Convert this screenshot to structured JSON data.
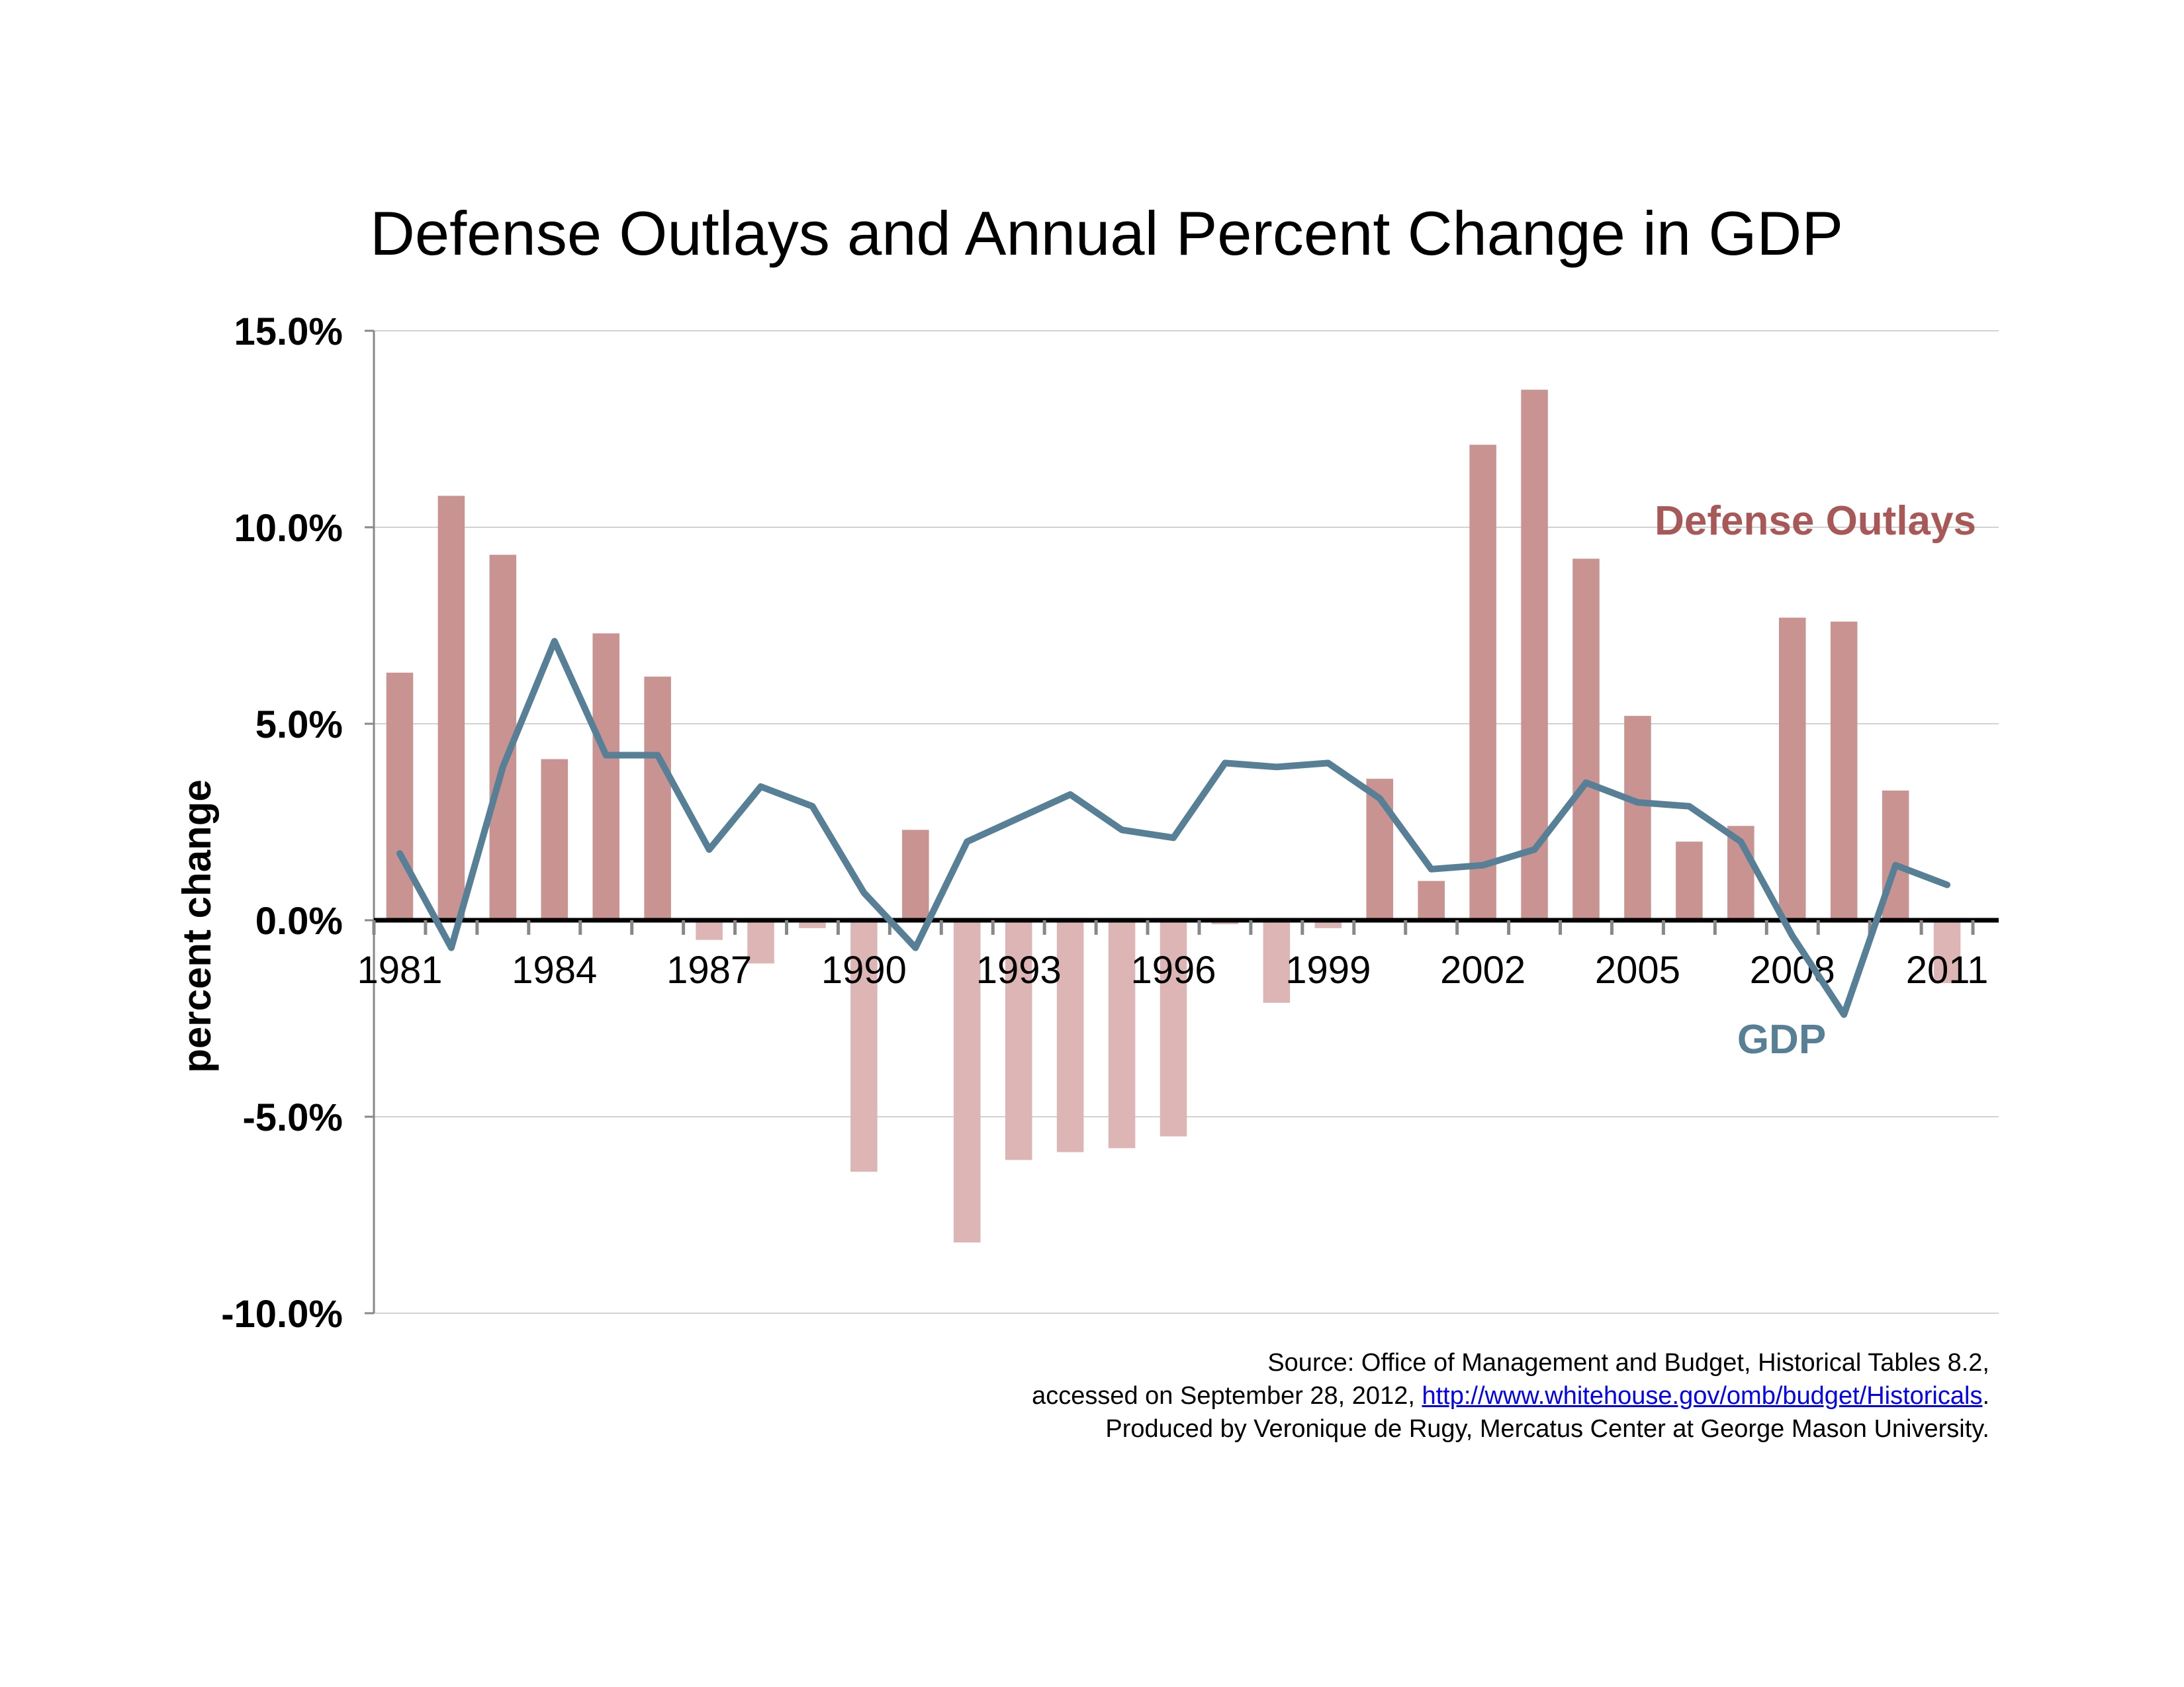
{
  "chart_data": {
    "type": "bar",
    "title": "Defense Outlays and Annual Percent Change in GDP",
    "xlabel": "",
    "ylabel": "percent change",
    "ylim": [
      -10,
      15
    ],
    "yticks": [
      15,
      10,
      5,
      0,
      -5,
      -10
    ],
    "ytick_labels": [
      "15.0%",
      "10.0%",
      "5.0%",
      "0.0%",
      "-5.0%",
      "-10.0%"
    ],
    "grid": true,
    "legend": "inline",
    "categories": [
      1981,
      1982,
      1983,
      1984,
      1985,
      1986,
      1987,
      1988,
      1989,
      1990,
      1991,
      1992,
      1993,
      1994,
      1995,
      1996,
      1997,
      1998,
      1999,
      2000,
      2001,
      2002,
      2003,
      2004,
      2005,
      2006,
      2007,
      2008,
      2009,
      2010,
      2011
    ],
    "xtick_labels": [
      "1981",
      "1984",
      "1987",
      "1990",
      "1993",
      "1996",
      "1999",
      "2002",
      "2005",
      "2008",
      "2011"
    ],
    "series": [
      {
        "name": "Defense Outlays",
        "type": "bar",
        "color": "#c99391",
        "negative_color": "#dcb5b4",
        "values": [
          6.3,
          10.8,
          9.3,
          4.1,
          7.3,
          6.2,
          -0.5,
          -1.1,
          -0.2,
          -6.4,
          2.3,
          -8.2,
          -6.1,
          -5.9,
          -5.8,
          -5.5,
          -0.1,
          -2.1,
          -0.2,
          3.6,
          1.0,
          12.1,
          13.5,
          9.2,
          5.2,
          2.0,
          2.4,
          7.7,
          7.6,
          3.3,
          -1.6
        ]
      },
      {
        "name": "GDP",
        "type": "line",
        "color": "#577f96",
        "values": [
          1.7,
          -0.7,
          3.9,
          7.1,
          4.2,
          4.2,
          1.8,
          3.4,
          2.9,
          0.7,
          -0.7,
          2.0,
          2.6,
          3.2,
          2.3,
          2.1,
          4.0,
          3.9,
          4.0,
          3.1,
          1.3,
          1.4,
          1.8,
          3.5,
          3.0,
          2.9,
          2.0,
          -0.4,
          -2.4,
          1.4,
          0.9
        ]
      }
    ],
    "annotations": [
      {
        "text": "Defense Outlays",
        "color": "#a85856"
      },
      {
        "text": "GDP",
        "color": "#577f96"
      }
    ]
  },
  "source": {
    "line1": "Source: Office of Management and Budget, Historical Tables 8.2,",
    "line2_prefix": "accessed on September 28, 2012, ",
    "link": "http://www.whitehouse.gov/omb/budget/Historicals",
    "line2_suffix": ".",
    "line3": "Produced by Veronique de Rugy, Mercatus Center at George Mason University."
  }
}
